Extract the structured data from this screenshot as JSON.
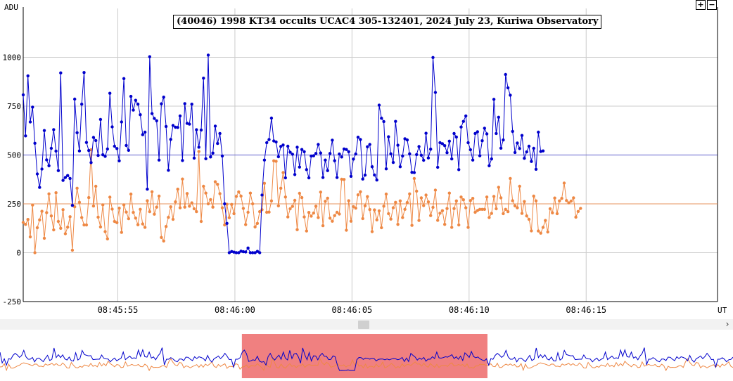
{
  "ui": {
    "zoom_in_label": "+",
    "zoom_out_label": "−",
    "scroll_right_label": "›"
  },
  "colors": {
    "target_series": "#0000cc",
    "comparison_series": "#ee8844",
    "grid": "#cccccc",
    "navigator_window": "#f08080"
  },
  "chart_data": {
    "type": "line",
    "title": "(40046) 1998 KT34 occults UCAC4 305-132401, 2024 July 23, Kuriwa Observatory",
    "ylabel": "ADU",
    "xlabel": "UT",
    "ylim": [
      -250,
      1250
    ],
    "yticks": [
      -250,
      0,
      250,
      500,
      750,
      1000
    ],
    "xlim_seconds": [
      50.96,
      80.61
    ],
    "xticks": [
      {
        "t": 55,
        "label": "08:45:55"
      },
      {
        "t": 60,
        "label": "08:46:00"
      },
      {
        "t": 65,
        "label": "08:46:05"
      },
      {
        "t": 70,
        "label": "08:46:10"
      },
      {
        "t": 75,
        "label": "08:46:15"
      }
    ],
    "x_start_seconds": 50.96,
    "x_step_seconds": 0.1,
    "series": [
      {
        "values": [
          808,
          598,
          905,
          669,
          745,
          560,
          403,
          334,
          428,
          625,
          475,
          445,
          534,
          630,
          520,
          420,
          920,
          370,
          385,
          395,
          380,
          242,
          786,
          614,
          521,
          760,
          922,
          564,
          523,
          461,
          590,
          574,
          498,
          682,
          501,
          493,
          531,
          816,
          644,
          545,
          533,
          470,
          669,
          891,
          549,
          524,
          800,
          730,
          780,
          760,
          706,
          604,
          617,
          325,
          1003,
          712,
          687,
          675,
          474,
          762,
          796,
          646,
          422,
          580,
          651,
          642,
          641,
          700,
          472,
          763,
          662,
          658,
          760,
          484,
          629,
          540,
          628,
          893,
          481,
          1011,
          490,
          510,
          648,
          559,
          610,
          495,
          250,
          150,
          0,
          6,
          3,
          0,
          0,
          8,
          5,
          4,
          24,
          0,
          0,
          0,
          7,
          0,
          295,
          474,
          563,
          579,
          689,
          572,
          567,
          491,
          544,
          551,
          383,
          545,
          514,
          504,
          400,
          540,
          438,
          528,
          517,
          425,
          383,
          495,
          496,
          508,
          554,
          510,
          385,
          474,
          420,
          508,
          576,
          471,
          385,
          505,
          490,
          531,
          528,
          517,
          391,
          479,
          505,
          591,
          579,
          377,
          397,
          542,
          554,
          440,
          398,
          372,
          755,
          688,
          671,
          429,
          593,
          506,
          462,
          672,
          550,
          440,
          495,
          583,
          577,
          506,
          411,
          410,
          502,
          543,
          499,
          473,
          611,
          485,
          530,
          999,
          820,
          437,
          563,
          558,
          548,
          512,
          571,
          480,
          610,
          592,
          425,
          643,
          672,
          700,
          563,
          527,
          474,
          610,
          619,
          496,
          573,
          637,
          608,
          445,
          480,
          785,
          610,
          693,
          535,
          577,
          912,
          844,
          806,
          621,
          513,
          561,
          533,
          600,
          483,
          516,
          545,
          467,
          534,
          427,
          617,
          518,
          521
        ]
      },
      {
        "values": [
          155,
          145,
          170,
          81,
          244,
          0,
          128,
          168,
          212,
          74,
          205,
          301,
          188,
          117,
          307,
          160,
          125,
          220,
          97,
          131,
          184,
          13,
          235,
          330,
          258,
          180,
          142,
          142,
          282,
          527,
          239,
          340,
          182,
          132,
          245,
          108,
          71,
          284,
          223,
          160,
          154,
          228,
          104,
          245,
          208,
          174,
          300,
          206,
          177,
          143,
          222,
          147,
          130,
          266,
          210,
          312,
          197,
          233,
          290,
          78,
          60,
          134,
          181,
          235,
          171,
          260,
          325,
          230,
          377,
          233,
          303,
          238,
          255,
          225,
          210,
          518,
          160,
          340,
          305,
          250,
          272,
          233,
          363,
          350,
          302,
          230,
          142,
          248,
          179,
          247,
          200,
          288,
          311,
          290,
          227,
          144,
          207,
          305,
          250,
          132,
          150,
          210,
          220,
          355,
          207,
          208,
          265,
          470,
          468,
          240,
          330,
          410,
          285,
          183,
          225,
          237,
          268,
          118,
          304,
          282,
          183,
          111,
          206,
          187,
          203,
          238,
          180,
          310,
          138,
          263,
          279,
          177,
          161,
          190,
          207,
          198,
          376,
          375,
          115,
          266,
          161,
          236,
          228,
          296,
          312,
          175,
          240,
          287,
          221,
          108,
          219,
          168,
          214,
          128,
          238,
          300,
          200,
          172,
          230,
          258,
          145,
          265,
          180,
          222,
          257,
          301,
          140,
          380,
          315,
          165,
          281,
          241,
          295,
          260,
          190,
          232,
          320,
          166,
          202,
          215,
          145,
          226,
          305,
          130,
          226,
          265,
          142,
          285,
          271,
          230,
          130,
          267,
          278,
          207,
          216,
          222,
          222,
          222,
          285,
          180,
          201,
          288,
          225,
          335,
          281,
          200,
          222,
          210,
          380,
          266,
          240,
          230,
          340,
          201,
          262,
          188,
          171,
          112,
          290,
          265,
          111,
          100,
          130,
          165,
          106,
          225,
          204,
          280,
          200,
          265,
          278,
          356,
          267,
          255,
          264,
          281,
          182,
          211,
          227
        ]
      }
    ],
    "navigator_selection": [
      0.33,
      0.665
    ]
  }
}
